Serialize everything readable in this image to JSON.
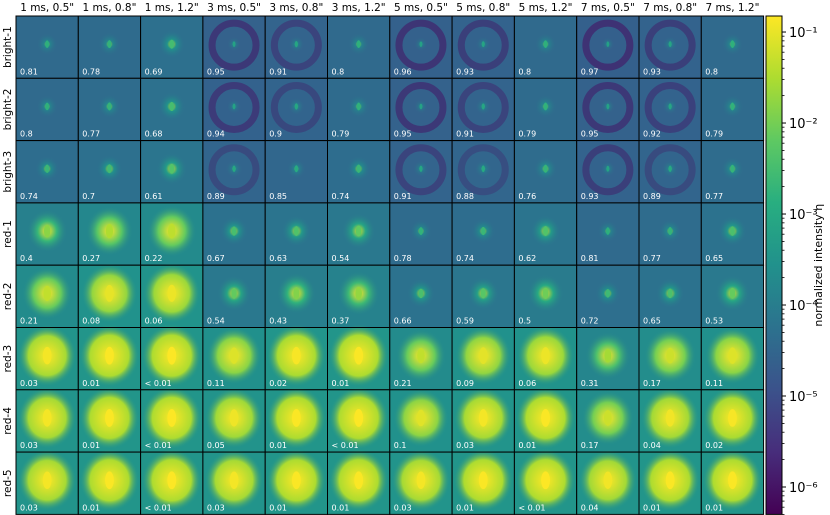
{
  "chart_data": {
    "type": "heatmap",
    "title": "",
    "columns": [
      "1 ms, 0.5\"",
      "1 ms, 0.8\"",
      "1 ms, 1.2\"",
      "3 ms, 0.5\"",
      "3 ms, 0.8\"",
      "3 ms, 1.2\"",
      "5 ms, 0.5\"",
      "5 ms, 0.8\"",
      "5 ms, 1.2\"",
      "7 ms, 0.5\"",
      "7 ms, 0.8\"",
      "7 ms, 1.2\""
    ],
    "rows": [
      "bright-1",
      "bright-2",
      "bright-3",
      "red-1",
      "red-2",
      "red-3",
      "red-4",
      "red-5"
    ],
    "values": [
      [
        "0.81",
        "0.78",
        "0.69",
        "0.95",
        "0.91",
        "0.8",
        "0.96",
        "0.93",
        "0.8",
        "0.97",
        "0.93",
        "0.8"
      ],
      [
        "0.8",
        "0.77",
        "0.68",
        "0.94",
        "0.9",
        "0.79",
        "0.95",
        "0.91",
        "0.79",
        "0.95",
        "0.92",
        "0.79"
      ],
      [
        "0.74",
        "0.7",
        "0.61",
        "0.89",
        "0.85",
        "0.74",
        "0.91",
        "0.88",
        "0.76",
        "0.93",
        "0.89",
        "0.77"
      ],
      [
        "0.4",
        "0.27",
        "0.22",
        "0.67",
        "0.63",
        "0.54",
        "0.78",
        "0.74",
        "0.62",
        "0.81",
        "0.77",
        "0.65"
      ],
      [
        "0.21",
        "0.08",
        "0.06",
        "0.54",
        "0.43",
        "0.37",
        "0.66",
        "0.59",
        "0.5",
        "0.72",
        "0.65",
        "0.53"
      ],
      [
        "0.03",
        "0.01",
        "< 0.01",
        "0.11",
        "0.02",
        "0.01",
        "0.21",
        "0.09",
        "0.06",
        "0.31",
        "0.17",
        "0.11"
      ],
      [
        "0.03",
        "0.01",
        "< 0.01",
        "0.05",
        "0.01",
        "< 0.01",
        "0.1",
        "0.03",
        "0.01",
        "0.17",
        "0.04",
        "0.02"
      ],
      [
        "0.03",
        "0.01",
        "< 0.01",
        "0.03",
        "0.01",
        "0.01",
        "0.03",
        "0.01",
        "< 0.01",
        "0.04",
        "0.01",
        "0.01"
      ]
    ],
    "colorbar": {
      "label": "normalized intensity η",
      "scale": "log",
      "range": [
        5e-07,
        0.15
      ],
      "ticks": [
        {
          "value": 0.1,
          "label": "10⁻¹"
        },
        {
          "value": 0.01,
          "label": "10⁻²"
        },
        {
          "value": 0.001,
          "label": "10⁻³"
        },
        {
          "value": 0.0001,
          "label": "10⁻⁴"
        },
        {
          "value": 1e-05,
          "label": "10⁻⁵"
        },
        {
          "value": 1e-06,
          "label": "10⁻⁶"
        }
      ],
      "colormap": "viridis"
    },
    "grid": false
  }
}
